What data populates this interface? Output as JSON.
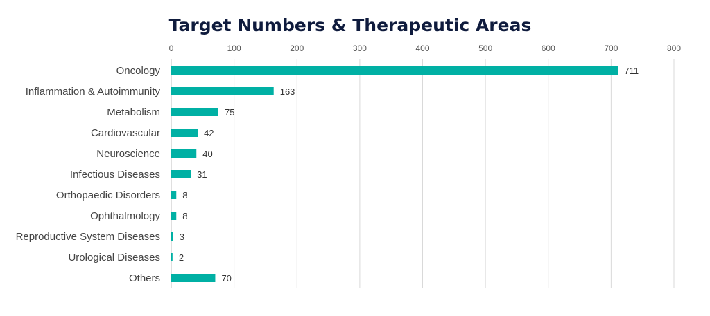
{
  "chart_data": {
    "type": "bar",
    "orientation": "horizontal",
    "title": "Target Numbers & Therapeutic Areas",
    "categories": [
      "Oncology",
      "Inflammation & Autoimmunity",
      "Metabolism",
      "Cardiovascular",
      "Neuroscience",
      "Infectious Diseases",
      "Orthopaedic Disorders",
      "Ophthalmology",
      "Reproductive System Diseases",
      "Urological Diseases",
      "Others"
    ],
    "values": [
      711,
      163,
      75,
      42,
      40,
      31,
      8,
      8,
      3,
      2,
      70
    ],
    "xlim": [
      0,
      800
    ],
    "x_ticks": [
      0,
      100,
      200,
      300,
      400,
      500,
      600,
      700,
      800
    ],
    "x_axis_position": "top",
    "grid": true,
    "data_labels": true,
    "bar_color": "#00b0a4",
    "title_color": "#0f1b3d"
  }
}
